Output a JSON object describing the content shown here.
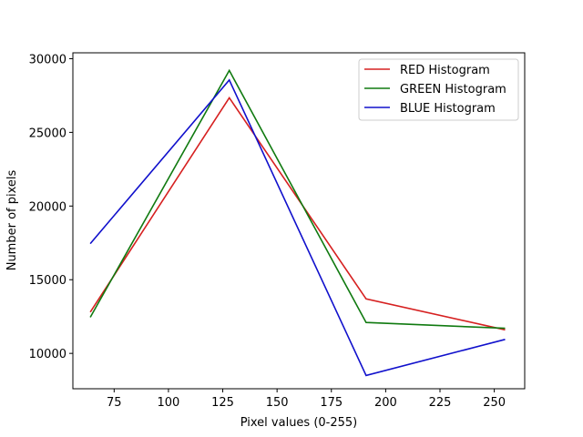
{
  "chart_data": {
    "type": "line",
    "xlabel": "Pixel values (0-255)",
    "ylabel": "Number of pixels",
    "xlim": [
      56,
      264
    ],
    "ylim": [
      7600,
      30400
    ],
    "xticks": [
      75,
      100,
      125,
      150,
      175,
      200,
      225,
      250
    ],
    "yticks": [
      10000,
      15000,
      20000,
      25000,
      30000
    ],
    "grid": false,
    "legend_position": "top-right",
    "x": [
      64,
      128,
      191,
      255
    ],
    "series": [
      {
        "name": "RED Histogram",
        "color": "#d62020",
        "values": [
          12800,
          27350,
          13700,
          11600
        ]
      },
      {
        "name": "GREEN Histogram",
        "color": "#107a10",
        "values": [
          12450,
          29200,
          12100,
          11700
        ]
      },
      {
        "name": "BLUE Histogram",
        "color": "#1010cc",
        "values": [
          17450,
          28550,
          8500,
          10950
        ]
      }
    ]
  }
}
